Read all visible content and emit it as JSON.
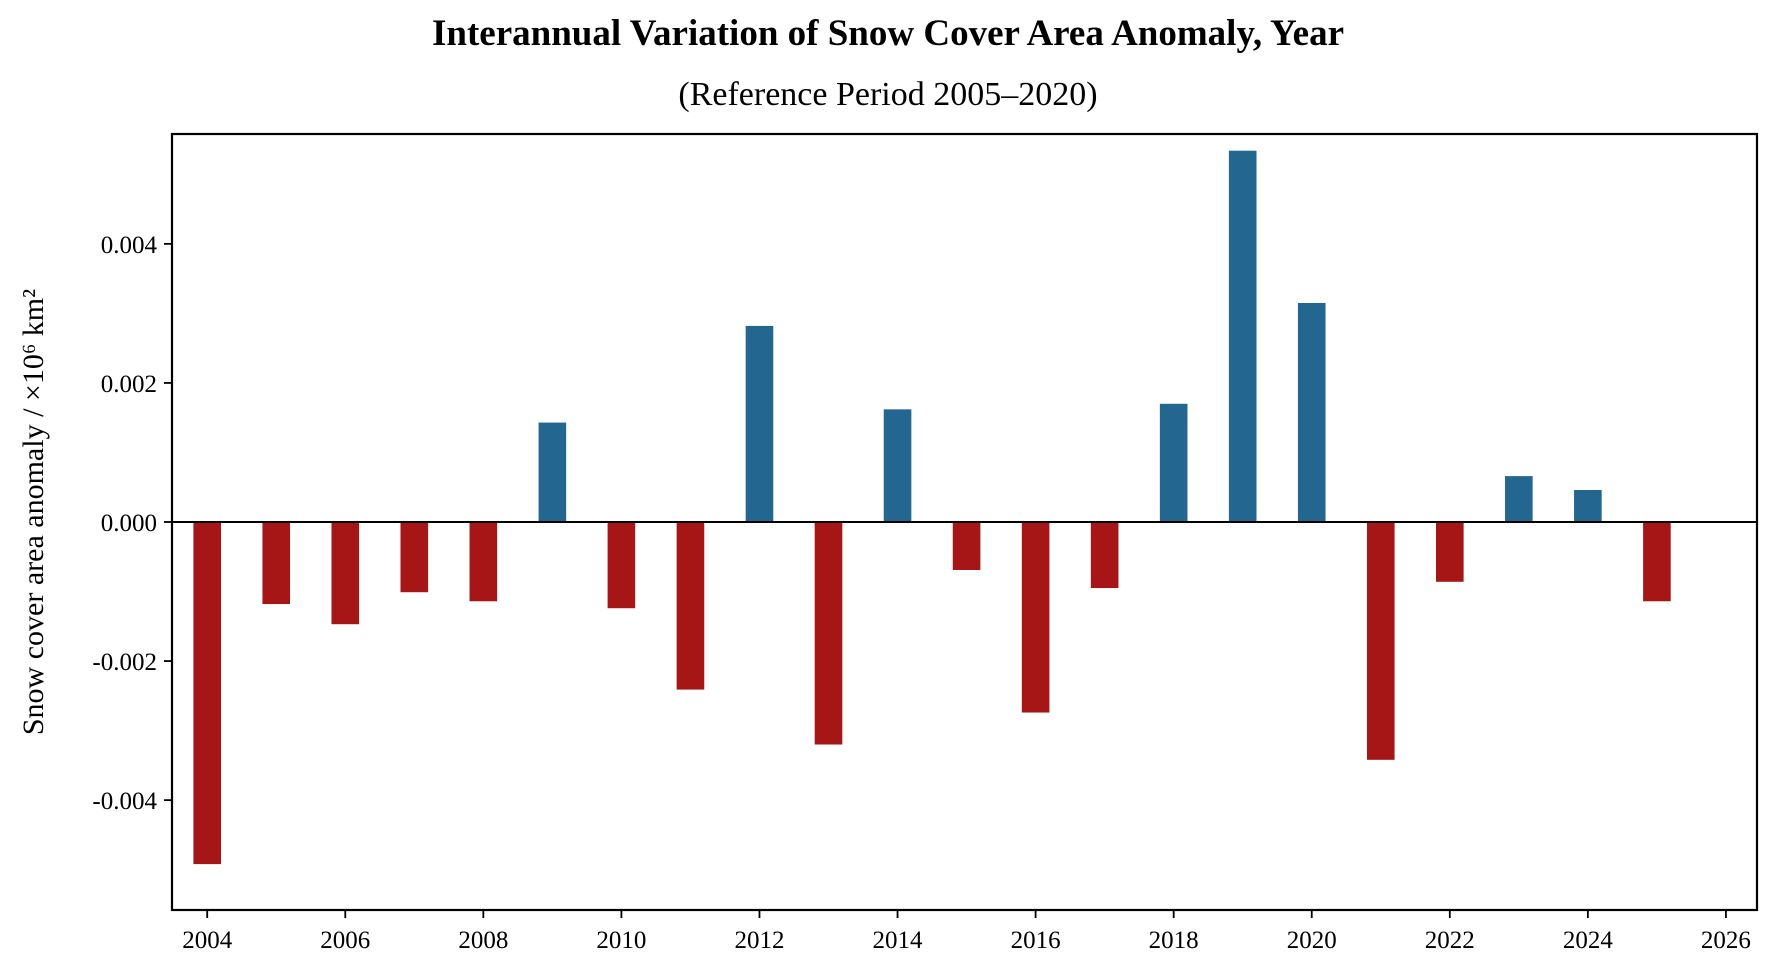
{
  "chart_data": {
    "type": "bar",
    "title": "Interannual Variation of Snow Cover Area Anomaly, Year",
    "subtitle": "(Reference Period 2005–2020)",
    "xlabel": "",
    "ylabel": "Snow cover area anomaly / ×10⁶ km²",
    "x": [
      2004,
      2005,
      2006,
      2007,
      2008,
      2009,
      2010,
      2011,
      2012,
      2013,
      2014,
      2015,
      2016,
      2017,
      2018,
      2019,
      2020,
      2021,
      2022,
      2023,
      2024,
      2025
    ],
    "values": [
      -0.00492,
      -0.00118,
      -0.00147,
      -0.00101,
      -0.00114,
      0.00143,
      -0.00124,
      -0.00241,
      0.00282,
      -0.0032,
      0.00162,
      -0.00069,
      -0.00274,
      -0.00095,
      0.0017,
      0.00534,
      0.00315,
      -0.00342,
      -0.00086,
      0.00066,
      0.00046,
      -0.00114
    ],
    "xlim": [
      2003.49,
      2026.45
    ],
    "ylim": [
      -0.00558,
      0.00558
    ],
    "xticks": [
      2004,
      2006,
      2008,
      2010,
      2012,
      2014,
      2016,
      2018,
      2020,
      2022,
      2024,
      2026
    ],
    "xtick_labels": [
      "2004",
      "2006",
      "2008",
      "2010",
      "2012",
      "2014",
      "2016",
      "2018",
      "2020",
      "2022",
      "2024",
      "2026"
    ],
    "yticks": [
      -0.004,
      -0.002,
      0.0,
      0.002,
      0.004
    ],
    "ytick_labels": [
      "-0.004",
      "-0.002",
      "0.000",
      "0.002",
      "0.004"
    ],
    "bar_width_years": 0.4,
    "colors": {
      "positive": "#23668f",
      "negative": "#a61616",
      "zero_line": "#000000",
      "frame": "#000000"
    },
    "grid": false,
    "legend": "none",
    "zero_line": true
  }
}
